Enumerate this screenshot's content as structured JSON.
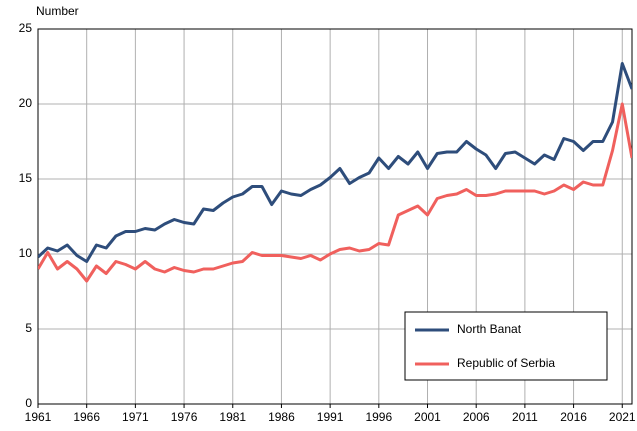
{
  "chart_data": {
    "type": "line",
    "y_label": "Number",
    "x": [
      1961,
      1962,
      1963,
      1964,
      1965,
      1966,
      1967,
      1968,
      1969,
      1970,
      1971,
      1972,
      1973,
      1974,
      1975,
      1976,
      1977,
      1978,
      1979,
      1980,
      1981,
      1982,
      1983,
      1984,
      1985,
      1986,
      1987,
      1988,
      1989,
      1990,
      1991,
      1992,
      1993,
      1994,
      1995,
      1996,
      1997,
      1998,
      1999,
      2000,
      2001,
      2002,
      2003,
      2004,
      2005,
      2006,
      2007,
      2008,
      2009,
      2010,
      2011,
      2012,
      2013,
      2014,
      2015,
      2016,
      2017,
      2018,
      2019,
      2020,
      2021,
      2022
    ],
    "series": [
      {
        "name": "North Banat",
        "color": "#2e4d7b",
        "values": [
          9.8,
          10.4,
          10.2,
          10.6,
          9.9,
          9.5,
          10.6,
          10.4,
          11.2,
          11.5,
          11.5,
          11.7,
          11.6,
          12.0,
          12.3,
          12.1,
          12.0,
          13.0,
          12.9,
          13.4,
          13.8,
          14.0,
          14.5,
          14.5,
          13.3,
          14.2,
          14.0,
          13.9,
          14.3,
          14.6,
          15.1,
          15.7,
          14.7,
          15.1,
          15.4,
          16.4,
          15.7,
          16.5,
          16.0,
          16.8,
          15.7,
          16.7,
          16.8,
          16.8,
          17.5,
          17.0,
          16.6,
          15.7,
          16.7,
          16.8,
          16.4,
          16.0,
          16.6,
          16.3,
          17.7,
          17.5,
          16.9,
          17.5,
          17.5,
          18.8,
          22.7,
          21.0
        ]
      },
      {
        "name": "Republic of Serbia",
        "color": "#f0605d",
        "values": [
          9.0,
          10.1,
          9.0,
          9.5,
          9.0,
          8.2,
          9.2,
          8.7,
          9.5,
          9.3,
          9.0,
          9.5,
          9.0,
          8.8,
          9.1,
          8.9,
          8.8,
          9.0,
          9.0,
          9.2,
          9.4,
          9.5,
          10.1,
          9.9,
          9.9,
          9.9,
          9.8,
          9.7,
          9.9,
          9.6,
          10.0,
          10.3,
          10.4,
          10.2,
          10.3,
          10.7,
          10.6,
          12.6,
          12.9,
          13.2,
          12.6,
          13.7,
          13.9,
          14.0,
          14.3,
          13.9,
          13.9,
          14.0,
          14.2,
          14.2,
          14.2,
          14.2,
          14.0,
          14.2,
          14.6,
          14.3,
          14.8,
          14.6,
          14.6,
          16.9,
          20.0,
          16.4
        ]
      }
    ],
    "xlim": [
      1961,
      2022
    ],
    "xticks": [
      1961,
      1966,
      1971,
      1976,
      1981,
      1986,
      1991,
      1996,
      2001,
      2006,
      2011,
      2016,
      2021
    ],
    "ylim": [
      0,
      25
    ],
    "yticks": [
      0,
      5,
      10,
      15,
      20,
      25
    ],
    "grid": true,
    "legend": "lower right"
  }
}
